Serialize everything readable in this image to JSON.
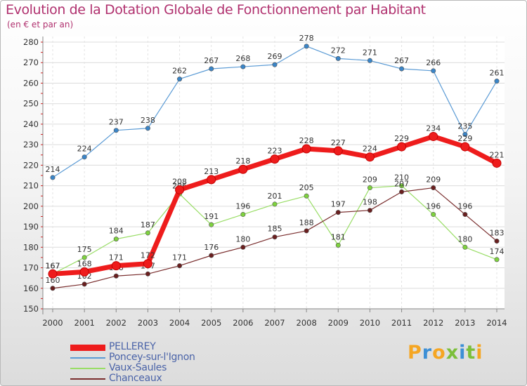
{
  "title": "Evolution de la Dotation Globale de Fonctionnement par Habitant",
  "subtitle": "(en € et par an)",
  "logo": {
    "text": "Proxiti",
    "letters": [
      "P",
      "r",
      "o",
      "x",
      "i",
      "t",
      "i"
    ],
    "colors": [
      "#f5a623",
      "#3c8fd6",
      "#f5a623",
      "#7cbf3a",
      "#3c8fd6",
      "#7cbf3a",
      "#f5a623"
    ]
  },
  "chart_data": {
    "type": "line",
    "title": "Evolution de la Dotation Globale de Fonctionnement par Habitant",
    "subtitle": "(en € et par an)",
    "xlabel": "",
    "ylabel": "",
    "x": [
      "2000",
      "2001",
      "2002",
      "2003",
      "2004",
      "2005",
      "2006",
      "2007",
      "2008",
      "2009",
      "2010",
      "2011",
      "2012",
      "2013",
      "2014"
    ],
    "ylim": [
      150,
      280
    ],
    "yticks": [
      150,
      160,
      170,
      180,
      190,
      200,
      210,
      220,
      230,
      240,
      250,
      260,
      270,
      280
    ],
    "grid": true,
    "legend_position": "bottom-left",
    "series": [
      {
        "name": "PELLEREY",
        "color": "#ee1c1c",
        "marker_color": "#ee1c1c",
        "emphasis": "thick",
        "values": [
          167,
          168,
          171,
          172,
          208,
          213,
          218,
          223,
          228,
          227,
          224,
          229,
          234,
          229,
          221
        ]
      },
      {
        "name": "Poncey-sur-l'Ignon",
        "color": "#5b9bd5",
        "marker_color": "#3a85c8",
        "emphasis": "normal",
        "values": [
          214,
          224,
          237,
          238,
          262,
          267,
          268,
          269,
          278,
          272,
          271,
          267,
          266,
          235,
          261
        ]
      },
      {
        "name": "Vaux-Saules",
        "color": "#99dd66",
        "marker_color": "#7ed23e",
        "emphasis": "normal",
        "values": [
          167,
          175,
          184,
          187,
          206,
          191,
          196,
          201,
          205,
          181,
          209,
          210,
          196,
          180,
          174
        ]
      },
      {
        "name": "Chanceaux",
        "color": "#7a2e2e",
        "marker_color": "#6a1f1f",
        "emphasis": "normal",
        "values": [
          160,
          162,
          166,
          167,
          171,
          176,
          180,
          185,
          188,
          197,
          198,
          207,
          209,
          196,
          183
        ]
      }
    ]
  }
}
